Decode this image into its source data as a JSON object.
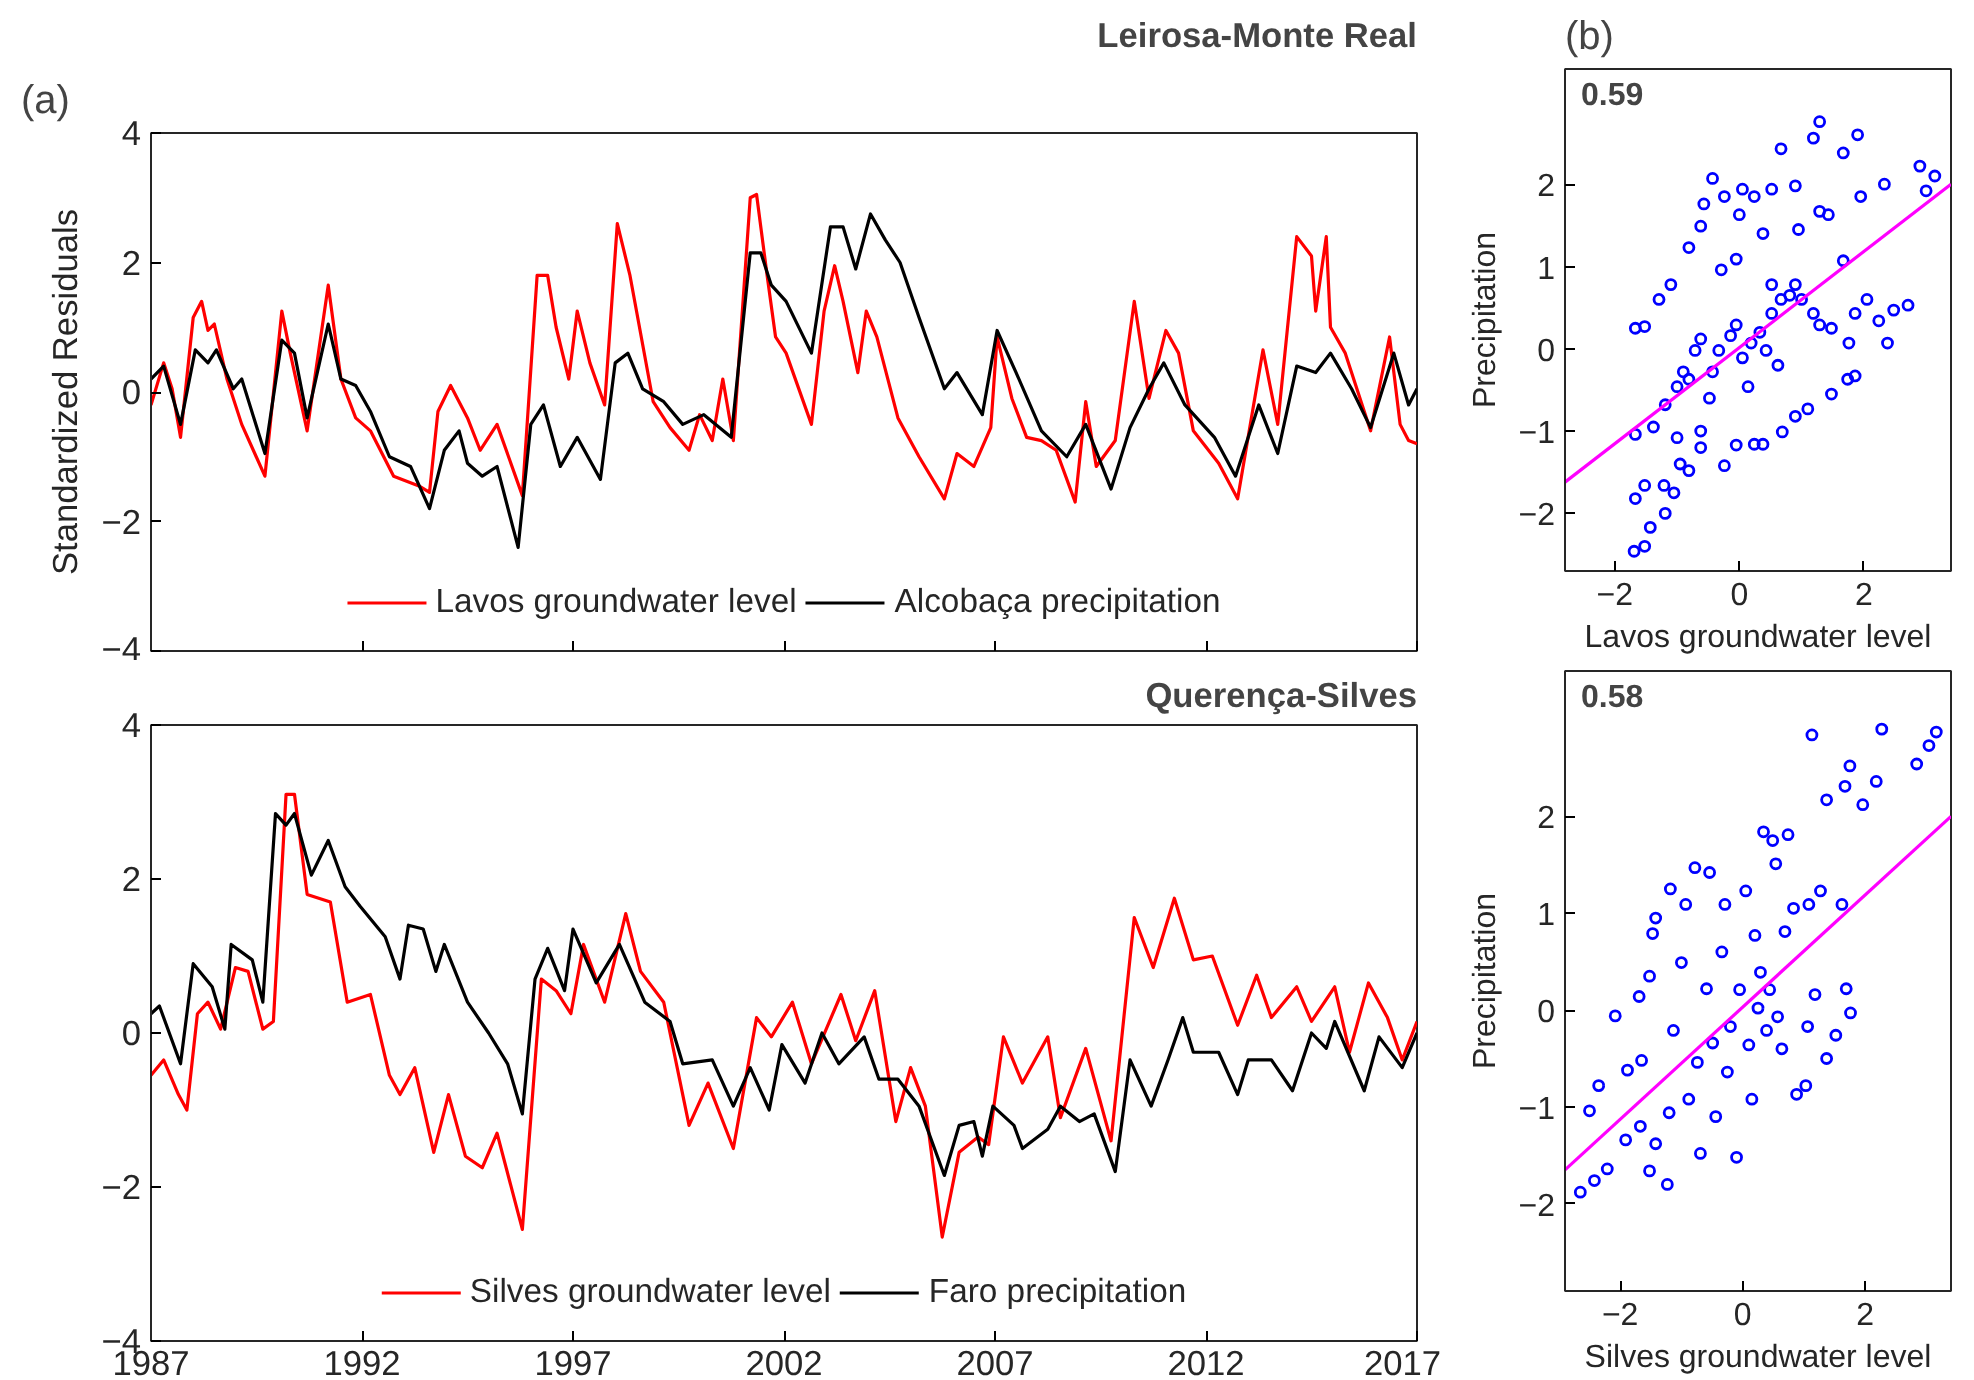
{
  "chart_data": [
    {
      "type": "line",
      "title": "Leirosa-Monte Real",
      "ylabel": "Standardized Residuals",
      "annotations": [
        "(a)"
      ],
      "xlim": [
        1987,
        2017
      ],
      "ylim": [
        -4,
        4
      ],
      "xticks": [
        1987,
        1992,
        1997,
        2002,
        2007,
        2012,
        2017
      ],
      "yticks": [
        -4,
        -2,
        0,
        2,
        4
      ],
      "tick_labels": "y",
      "legend": "bottom",
      "series": [
        {
          "name": "Lavos groundwater level",
          "color": "#ff0000",
          "x": [
            1987.0,
            1987.3,
            1987.5,
            1987.7,
            1988.0,
            1988.2,
            1988.35,
            1988.5,
            1988.8,
            1989.15,
            1989.7,
            1990.1,
            1990.3,
            1990.7,
            1991.2,
            1991.5,
            1991.85,
            1992.2,
            1992.75,
            1993.35,
            1993.6,
            1993.8,
            1994.1,
            1994.5,
            1994.8,
            1995.2,
            1995.8,
            1996.15,
            1996.4,
            1996.6,
            1996.9,
            1997.1,
            1997.4,
            1997.75,
            1998.05,
            1998.35,
            1998.9,
            1999.3,
            1999.75,
            2000.0,
            2000.3,
            2000.55,
            2000.8,
            2001.2,
            2001.35,
            2001.6,
            2001.8,
            2002.05,
            2002.65,
            2002.95,
            2003.2,
            2003.4,
            2003.75,
            2003.95,
            2004.2,
            2004.7,
            2005.2,
            2005.8,
            2006.1,
            2006.5,
            2006.9,
            2007.05,
            2007.4,
            2007.75,
            2008.1,
            2008.45,
            2008.9,
            2009.15,
            2009.4,
            2009.85,
            2010.3,
            2010.65,
            2011.05,
            2011.35,
            2011.7,
            2012.3,
            2012.75,
            2013.35,
            2013.7,
            2014.15,
            2014.5,
            2014.6,
            2014.85,
            2014.95,
            2015.3,
            2015.9,
            2016.35,
            2016.6,
            2016.8,
            2017.0
          ],
          "values": [
            -0.2,
            0.45,
            0.05,
            -0.7,
            1.15,
            1.4,
            0.95,
            1.05,
            0.2,
            -0.5,
            -1.3,
            1.25,
            0.6,
            -0.6,
            1.65,
            0.2,
            -0.4,
            -0.6,
            -1.3,
            -1.45,
            -1.55,
            -0.3,
            0.1,
            -0.4,
            -0.9,
            -0.5,
            -1.6,
            1.8,
            1.8,
            1.0,
            0.2,
            1.25,
            0.45,
            -0.2,
            2.6,
            1.8,
            -0.15,
            -0.55,
            -0.9,
            -0.35,
            -0.75,
            0.2,
            -0.75,
            3.0,
            3.05,
            1.8,
            0.85,
            0.6,
            -0.5,
            1.25,
            1.95,
            1.4,
            0.3,
            1.25,
            0.85,
            -0.4,
            -1.0,
            -1.65,
            -0.95,
            -1.15,
            -0.55,
            0.85,
            -0.1,
            -0.7,
            -0.75,
            -0.9,
            -1.7,
            -0.15,
            -1.15,
            -0.75,
            1.4,
            -0.1,
            0.95,
            0.6,
            -0.6,
            -1.1,
            -1.65,
            0.65,
            -0.5,
            2.4,
            2.1,
            1.25,
            2.4,
            1.0,
            0.6,
            -0.6,
            0.85,
            -0.5,
            -0.75,
            -0.8
          ]
        },
        {
          "name": "Alcobaça precipitation",
          "color": "#000000",
          "x": [
            1987.0,
            1987.3,
            1987.7,
            1988.05,
            1988.35,
            1988.55,
            1988.95,
            1989.15,
            1989.7,
            1990.1,
            1990.4,
            1990.7,
            1991.2,
            1991.5,
            1991.85,
            1992.2,
            1992.65,
            1993.15,
            1993.6,
            1993.95,
            1994.3,
            1994.5,
            1994.85,
            1995.2,
            1995.7,
            1996.0,
            1996.3,
            1996.7,
            1997.1,
            1997.65,
            1998.0,
            1998.3,
            1998.65,
            1999.15,
            1999.6,
            2000.1,
            2000.75,
            2001.2,
            2001.45,
            2001.7,
            2002.05,
            2002.65,
            2003.1,
            2003.4,
            2003.7,
            2004.05,
            2004.4,
            2004.75,
            2005.2,
            2005.8,
            2006.1,
            2006.7,
            2007.05,
            2007.5,
            2008.1,
            2008.7,
            2009.15,
            2009.75,
            2010.2,
            2010.65,
            2011.0,
            2011.5,
            2012.2,
            2012.7,
            2013.25,
            2013.7,
            2014.15,
            2014.6,
            2014.95,
            2015.45,
            2015.9,
            2016.45,
            2016.8,
            2017.0
          ],
          "values": [
            0.2,
            0.4,
            -0.5,
            0.65,
            0.45,
            0.65,
            0.05,
            0.2,
            -0.95,
            0.8,
            0.6,
            -0.4,
            1.05,
            0.2,
            0.1,
            -0.3,
            -1.0,
            -1.15,
            -1.8,
            -0.9,
            -0.6,
            -1.1,
            -1.3,
            -1.15,
            -2.4,
            -0.5,
            -0.2,
            -1.15,
            -0.7,
            -1.35,
            0.45,
            0.6,
            0.05,
            -0.15,
            -0.5,
            -0.35,
            -0.7,
            2.15,
            2.15,
            1.65,
            1.4,
            0.6,
            2.55,
            2.55,
            1.9,
            2.75,
            2.35,
            2.0,
            1.15,
            0.05,
            0.3,
            -0.35,
            0.95,
            0.3,
            -0.6,
            -1.0,
            -0.5,
            -1.5,
            -0.55,
            0.05,
            0.45,
            -0.2,
            -0.7,
            -1.3,
            -0.2,
            -0.95,
            0.4,
            0.3,
            0.6,
            0.05,
            -0.55,
            0.6,
            -0.2,
            0.05
          ]
        }
      ]
    },
    {
      "type": "scatter",
      "title": "(b)",
      "xlabel": "Lavos groundwater level",
      "ylabel": "Precipitation",
      "annotations": [
        "0.59"
      ],
      "xlim": [
        -2.8,
        3.4
      ],
      "ylim": [
        -2.7,
        3.4
      ],
      "xticks": [
        -2,
        0,
        2
      ],
      "yticks": [
        -2,
        -1,
        0,
        1,
        2
      ],
      "series": [
        {
          "color": "#0000ff",
          "marker": "circle",
          "x": [
            -1.69,
            -1.52,
            -1.43,
            -1.19,
            -1.67,
            -1.52,
            -1.21,
            -1.05,
            -0.95,
            -0.81,
            -0.62,
            -0.24,
            -0.05,
            0.24,
            0.38,
            0.69,
            0.9,
            1.1,
            1.48,
            1.86,
            1.74,
            -1.67,
            -1.38,
            -1.19,
            -1.0,
            -0.9,
            -0.71,
            -0.62,
            -0.81,
            -0.43,
            -0.33,
            -0.14,
            -0.05,
            0.05,
            0.19,
            0.33,
            0.52,
            0.67,
            0.81,
            0.9,
            1.0,
            1.19,
            1.29,
            1.48,
            1.76,
            1.86,
            2.05,
            2.24,
            2.38,
            2.48,
            2.71,
            0.43,
            0.62,
            0.14,
            -0.48,
            -1.0,
            -1.67,
            -1.52,
            -1.29,
            -1.1,
            -0.81,
            -0.62,
            -0.43,
            -0.24,
            0.0,
            0.05,
            0.24,
            0.38,
            0.52,
            0.67,
            0.9,
            0.95,
            1.19,
            1.29,
            1.29,
            1.43,
            1.67,
            1.9,
            1.95,
            2.33,
            2.9,
            3.0,
            3.14,
            -0.62,
            -0.29,
            -0.05,
            0.52,
            1.67,
            -0.57
          ],
          "values": [
            -2.46,
            -2.4,
            -2.17,
            -2.0,
            -1.82,
            -1.66,
            -1.66,
            -1.75,
            -1.4,
            -1.48,
            -1.2,
            -1.42,
            -1.17,
            -1.16,
            -1.16,
            -1.01,
            -0.82,
            -0.73,
            -0.55,
            -0.33,
            -0.37,
            -1.04,
            -0.95,
            -0.68,
            -0.46,
            -0.28,
            -0.02,
            0.12,
            -0.37,
            -0.28,
            -0.02,
            0.16,
            0.29,
            -0.11,
            0.07,
            0.2,
            0.43,
            0.6,
            0.65,
            0.78,
            0.6,
            0.43,
            0.29,
            0.25,
            0.07,
            0.43,
            0.6,
            0.34,
            0.07,
            0.47,
            0.53,
            -0.02,
            -0.2,
            -0.46,
            -0.6,
            -1.08,
            0.25,
            0.27,
            0.6,
            0.78,
            1.23,
            1.49,
            2.07,
            1.85,
            1.63,
            1.94,
            1.85,
            1.4,
            1.94,
            2.43,
            1.98,
            1.45,
            2.56,
            2.76,
            1.67,
            1.63,
            2.38,
            2.6,
            1.85,
            2.0,
            2.22,
            1.92,
            2.1,
            -1.0,
            0.96,
            1.09,
            0.78,
            1.07,
            1.76
          ]
        },
        {
          "type": "line",
          "color": "#ff00ff",
          "x": [
            -2.8,
            3.4
          ],
          "values": [
            -1.62,
            2.0
          ]
        }
      ]
    },
    {
      "type": "line",
      "title": "Querença-Silves",
      "xlim": [
        1987,
        2017
      ],
      "ylim": [
        -4,
        4
      ],
      "xticks": [
        1987,
        1992,
        1997,
        2002,
        2007,
        2012,
        2017
      ],
      "yticks": [
        -4,
        -2,
        0,
        2,
        4
      ],
      "legend": "bottom",
      "series": [
        {
          "name": "Silves groundwater level",
          "color": "#ff0000",
          "x": [
            1987.0,
            1987.3,
            1987.65,
            1987.85,
            1988.1,
            1988.35,
            1988.65,
            1989.0,
            1989.3,
            1989.65,
            1989.9,
            1990.2,
            1990.4,
            1990.7,
            1991.25,
            1991.65,
            1992.2,
            1992.65,
            1992.9,
            1993.25,
            1993.7,
            1994.05,
            1994.45,
            1994.85,
            1995.2,
            1995.8,
            1996.25,
            1996.6,
            1996.95,
            1997.25,
            1997.75,
            1998.25,
            1998.6,
            1999.15,
            1999.75,
            2000.2,
            2000.8,
            2001.35,
            2001.7,
            2002.2,
            2002.65,
            2003.35,
            2003.7,
            2004.15,
            2004.65,
            2005.0,
            2005.35,
            2005.75,
            2006.15,
            2006.6,
            2006.85,
            2007.2,
            2007.65,
            2008.25,
            2008.55,
            2009.15,
            2009.75,
            2010.3,
            2010.75,
            2011.25,
            2011.7,
            2012.15,
            2012.75,
            2013.2,
            2013.55,
            2014.15,
            2014.5,
            2015.05,
            2015.4,
            2015.85,
            2016.3,
            2016.65,
            2017.0
          ],
          "values": [
            -0.55,
            -0.35,
            -0.8,
            -1.0,
            0.25,
            0.4,
            0.05,
            0.85,
            0.8,
            0.05,
            0.15,
            3.1,
            3.1,
            1.8,
            1.7,
            0.4,
            0.5,
            -0.55,
            -0.8,
            -0.45,
            -1.55,
            -0.8,
            -1.6,
            -1.75,
            -1.3,
            -2.55,
            0.7,
            0.55,
            0.25,
            1.15,
            0.4,
            1.55,
            0.8,
            0.4,
            -1.2,
            -0.65,
            -1.5,
            0.2,
            -0.05,
            0.4,
            -0.4,
            0.5,
            -0.1,
            0.55,
            -1.15,
            -0.45,
            -0.95,
            -2.65,
            -1.55,
            -1.35,
            -1.45,
            -0.05,
            -0.65,
            -0.05,
            -1.1,
            -0.2,
            -1.4,
            1.5,
            0.85,
            1.75,
            0.95,
            1.0,
            0.1,
            0.75,
            0.2,
            0.6,
            0.15,
            0.6,
            -0.25,
            0.65,
            0.2,
            -0.35,
            0.15
          ]
        },
        {
          "name": "Faro precipitation",
          "color": "#000000",
          "x": [
            1987.0,
            1987.2,
            1987.7,
            1988.0,
            1988.45,
            1988.75,
            1988.9,
            1989.4,
            1989.65,
            1989.95,
            1990.2,
            1990.4,
            1990.8,
            1991.2,
            1991.6,
            1991.95,
            1992.55,
            1992.9,
            1993.1,
            1993.45,
            1993.75,
            1993.95,
            1994.5,
            1995.0,
            1995.45,
            1995.8,
            1996.1,
            1996.4,
            1996.8,
            1997.0,
            1997.55,
            1998.1,
            1998.7,
            1999.3,
            1999.6,
            2000.3,
            2000.8,
            2001.2,
            2001.65,
            2001.95,
            2002.5,
            2002.9,
            2003.3,
            2003.9,
            2004.25,
            2004.7,
            2005.2,
            2005.8,
            2006.15,
            2006.5,
            2006.7,
            2006.95,
            2007.45,
            2007.65,
            2008.25,
            2008.55,
            2009.0,
            2009.35,
            2009.85,
            2010.2,
            2010.7,
            2011.1,
            2011.45,
            2011.7,
            2012.3,
            2012.75,
            2013.0,
            2013.55,
            2014.05,
            2014.5,
            2014.85,
            2015.05,
            2015.75,
            2016.1,
            2016.65,
            2017.0
          ],
          "values": [
            0.25,
            0.35,
            -0.4,
            0.9,
            0.6,
            0.05,
            1.15,
            0.95,
            0.4,
            2.85,
            2.7,
            2.85,
            2.05,
            2.5,
            1.9,
            1.65,
            1.25,
            0.7,
            1.4,
            1.35,
            0.8,
            1.15,
            0.4,
            0.0,
            -0.4,
            -1.05,
            0.7,
            1.1,
            0.55,
            1.35,
            0.65,
            1.15,
            0.4,
            0.15,
            -0.4,
            -0.35,
            -0.95,
            -0.45,
            -1.0,
            -0.15,
            -0.65,
            0.0,
            -0.4,
            -0.05,
            -0.6,
            -0.6,
            -0.95,
            -1.85,
            -1.2,
            -1.15,
            -1.6,
            -0.95,
            -1.2,
            -1.5,
            -1.25,
            -0.95,
            -1.15,
            -1.05,
            -1.8,
            -0.35,
            -0.95,
            -0.35,
            0.2,
            -0.25,
            -0.25,
            -0.8,
            -0.35,
            -0.35,
            -0.75,
            0.0,
            -0.2,
            0.15,
            -0.75,
            -0.05,
            -0.45,
            0.0
          ]
        }
      ]
    },
    {
      "type": "scatter",
      "xlabel": "Silves groundwater level",
      "ylabel": "Precipitation",
      "annotations": [
        "0.58"
      ],
      "xlim": [
        -2.9,
        3.4
      ],
      "ylim": [
        -2.9,
        3.5
      ],
      "xticks": [
        -2,
        0,
        2
      ],
      "yticks": [
        -2,
        -1,
        0,
        1,
        2
      ],
      "series": [
        {
          "color": "#0000ff",
          "marker": "circle",
          "x": [
            -2.65,
            -2.42,
            -2.21,
            -2.5,
            -2.35,
            -2.08,
            -1.91,
            -1.88,
            -1.67,
            -1.65,
            -1.69,
            -1.52,
            -1.42,
            -1.52,
            -1.47,
            -1.42,
            -1.23,
            -1.2,
            -1.18,
            -1.13,
            -1.0,
            -0.93,
            -0.88,
            -0.78,
            -0.74,
            -0.69,
            -0.59,
            -0.54,
            -0.49,
            -0.44,
            -0.34,
            -0.29,
            -0.25,
            -0.2,
            -0.1,
            -0.05,
            0.05,
            0.1,
            0.15,
            0.2,
            0.25,
            0.29,
            0.34,
            0.39,
            0.44,
            0.49,
            0.54,
            0.57,
            0.64,
            0.69,
            0.74,
            0.83,
            0.88,
            1.03,
            1.06,
            1.08,
            1.13,
            1.18,
            1.27,
            1.37,
            1.37,
            1.52,
            1.62,
            1.67,
            1.69,
            1.75,
            1.76,
            1.96,
            2.18,
            2.27,
            2.84,
            3.04,
            3.16
          ],
          "values": [
            -1.88,
            -1.76,
            -1.64,
            -1.04,
            -0.78,
            -0.06,
            -1.34,
            -0.62,
            -1.2,
            -0.52,
            0.14,
            -1.66,
            -1.38,
            0.35,
            0.79,
            0.95,
            -1.8,
            -1.06,
            1.25,
            -0.21,
            0.49,
            1.09,
            -0.92,
            1.47,
            -0.54,
            -1.48,
            0.22,
            1.42,
            -0.34,
            -1.1,
            0.6,
            1.09,
            -0.64,
            -0.17,
            -1.52,
            0.21,
            1.23,
            -0.36,
            -0.92,
            0.77,
            0.02,
            0.39,
            1.84,
            -0.21,
            0.21,
            1.75,
            1.51,
            -0.07,
            -0.4,
            0.81,
            1.81,
            1.05,
            -0.87,
            -0.78,
            -0.17,
            1.09,
            2.84,
            0.16,
            1.23,
            2.17,
            -0.5,
            -0.26,
            1.09,
            2.31,
            0.22,
            2.52,
            -0.03,
            2.12,
            2.36,
            2.9,
            2.54,
            2.73,
            2.87
          ]
        },
        {
          "type": "line",
          "color": "#ff00ff",
          "x": [
            -2.9,
            3.4
          ],
          "values": [
            -1.65,
            2.0
          ]
        }
      ]
    }
  ]
}
